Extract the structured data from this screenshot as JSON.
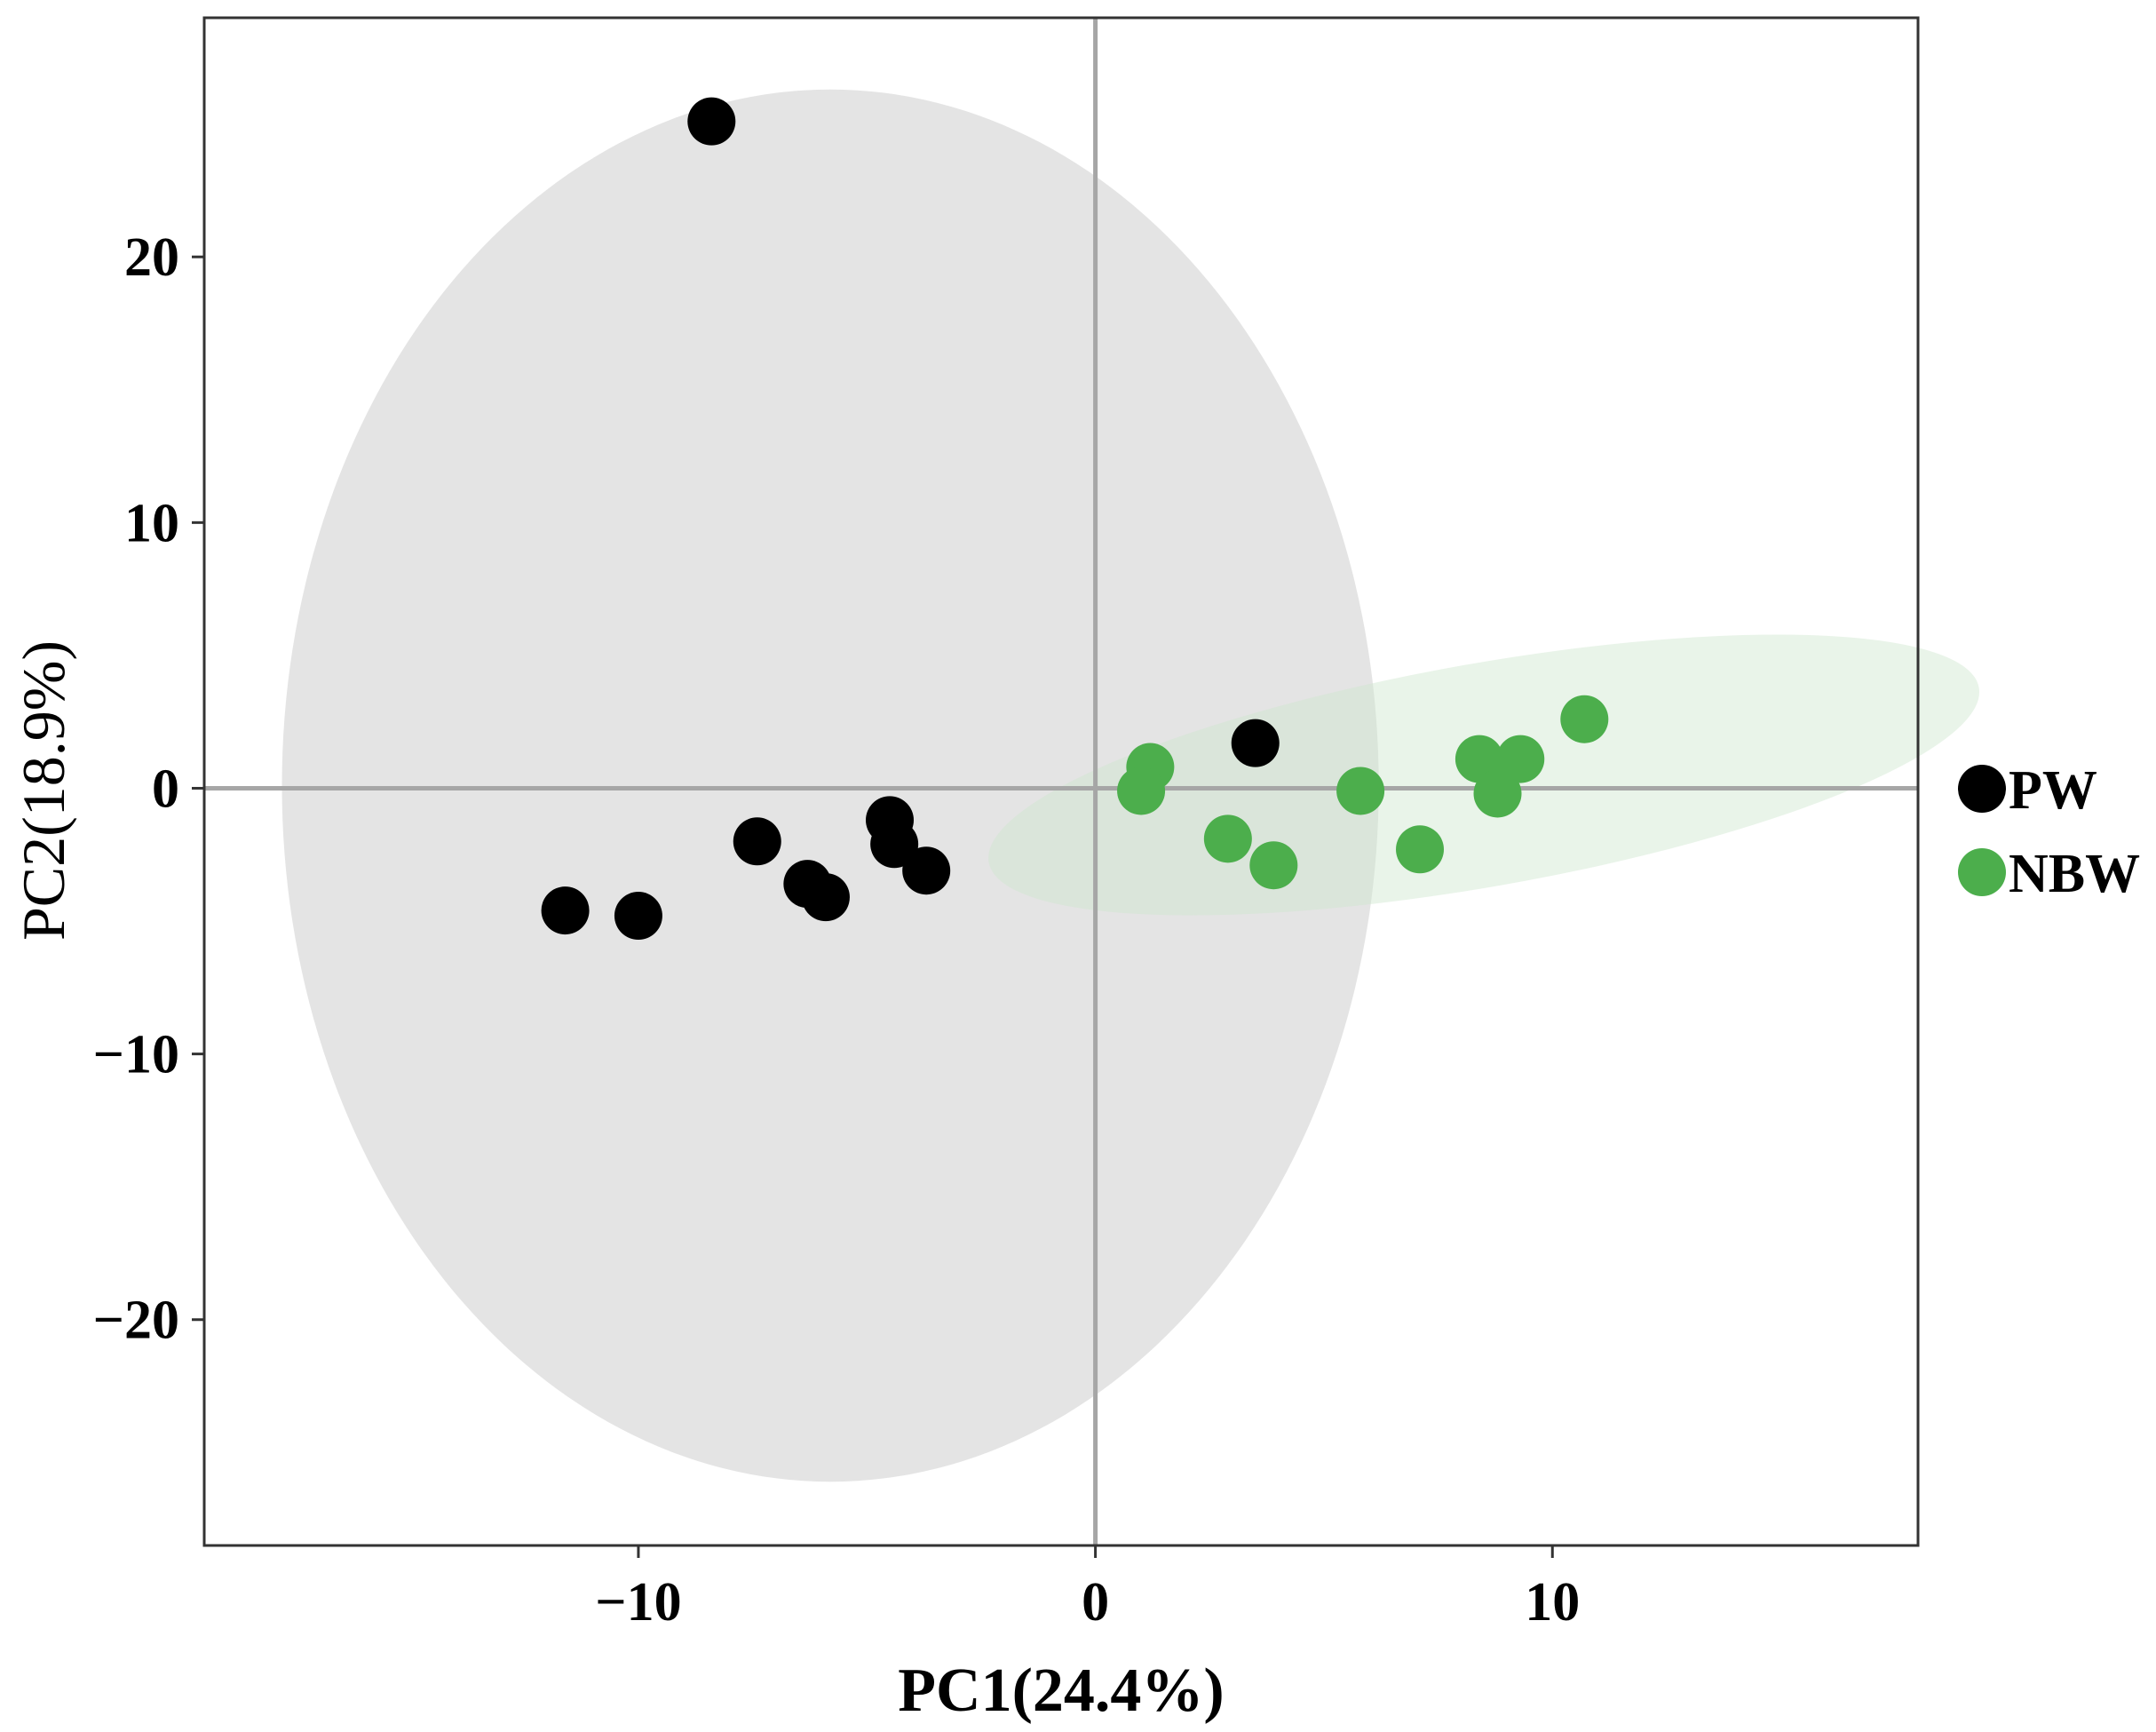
{
  "chart_data": {
    "type": "scatter",
    "xlabel": "PC1(24.4%)",
    "ylabel": "PC2(18.9%)",
    "xlim": [
      -19.5,
      18
    ],
    "ylim": [
      -28.5,
      29
    ],
    "xticks": [
      -10,
      0,
      10
    ],
    "yticks": [
      -20,
      -10,
      0,
      10,
      20
    ],
    "xtick_labels": [
      "−10",
      "0",
      "10"
    ],
    "ytick_labels": [
      "−20",
      "−10",
      "0",
      "10",
      "20"
    ],
    "grid": false,
    "reference_lines": {
      "x": 0,
      "y": 0
    },
    "legend": {
      "position": "right"
    },
    "series": [
      {
        "name": "PW",
        "color": "#000000",
        "ellipse_color": "#d9d9d9",
        "ellipse": {
          "cx": -5.8,
          "cy": 0.1,
          "rx": 12.0,
          "ry": 26.2,
          "angle_deg": 0
        },
        "points": [
          {
            "x": -8.4,
            "y": 25.1
          },
          {
            "x": 3.5,
            "y": 1.7
          },
          {
            "x": -4.5,
            "y": -1.2
          },
          {
            "x": -4.4,
            "y": -2.1
          },
          {
            "x": -3.7,
            "y": -3.1
          },
          {
            "x": -7.4,
            "y": -2.0
          },
          {
            "x": -6.3,
            "y": -3.6
          },
          {
            "x": -5.9,
            "y": -4.1
          },
          {
            "x": -11.6,
            "y": -4.6
          },
          {
            "x": -10.0,
            "y": -4.8
          }
        ]
      },
      {
        "name": "NBW",
        "color": "#4cae4c",
        "ellipse_color": "#cfe6cf",
        "ellipse": {
          "cx": 8.5,
          "cy": 0.5,
          "rx": 11.0,
          "ry": 4.2,
          "angle_deg": 10
        },
        "points": [
          {
            "x": 10.7,
            "y": 2.6
          },
          {
            "x": 8.4,
            "y": 1.1
          },
          {
            "x": 9.3,
            "y": 1.1
          },
          {
            "x": 8.8,
            "y": -0.2
          },
          {
            "x": 5.8,
            "y": -0.1
          },
          {
            "x": 1.2,
            "y": 0.8
          },
          {
            "x": 1.0,
            "y": -0.1
          },
          {
            "x": 2.9,
            "y": -1.9
          },
          {
            "x": 3.9,
            "y": -2.9
          },
          {
            "x": 7.1,
            "y": -2.3
          }
        ]
      }
    ]
  }
}
